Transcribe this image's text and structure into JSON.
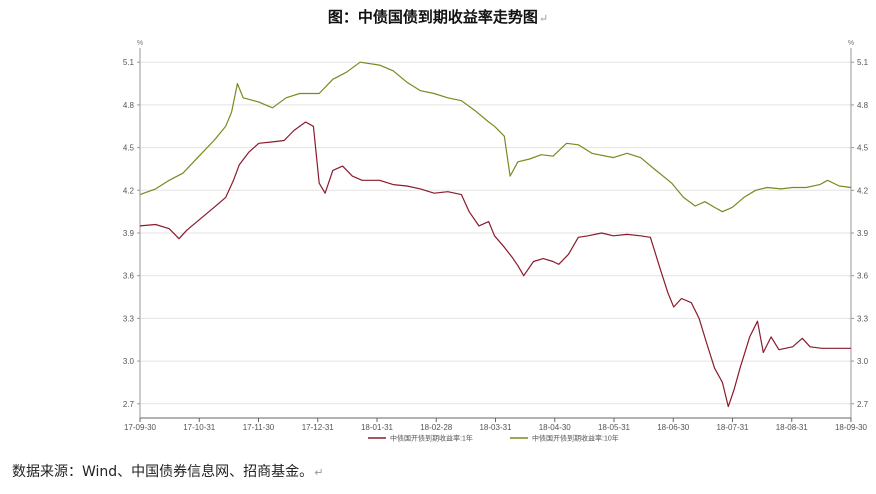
{
  "page": {
    "title": "图：中债国债到期收益率走势图",
    "return_mark": "↵",
    "source": "数据来源：Wind、中国债券信息网、招商基金。"
  },
  "chart_data": {
    "type": "line",
    "title": "图：中债国债到期收益率走势图",
    "unit_left": "%",
    "unit_right": "%",
    "ylim": [
      2.6,
      5.2
    ],
    "y_ticks": [
      "5.1",
      "4.8",
      "4.5",
      "4.2",
      "3.9",
      "3.6",
      "3.3",
      "3.0",
      "2.7"
    ],
    "y_tick_values": [
      5.1,
      4.8,
      4.5,
      4.2,
      3.9,
      3.6,
      3.3,
      3.0,
      2.7
    ],
    "x_ticks": [
      "17-09-30",
      "17-10-31",
      "17-11-30",
      "17-12-31",
      "18-01-31",
      "18-02-28",
      "18-03-31",
      "18-04-30",
      "18-05-31",
      "18-06-30",
      "18-07-31",
      "18-08-31",
      "18-09-30"
    ],
    "xlim": [
      "2017-09-30",
      "2018-09-30"
    ],
    "grid": "horizontal",
    "legend_position": "bottom",
    "series": [
      {
        "name": "中债国开债到期收益率:1年",
        "color": "#8b1a2b",
        "points": [
          [
            "2017-09-30",
            3.95
          ],
          [
            "2017-10-08",
            3.96
          ],
          [
            "2017-10-15",
            3.93
          ],
          [
            "2017-10-20",
            3.86
          ],
          [
            "2017-10-24",
            3.92
          ],
          [
            "2017-10-31",
            4.0
          ],
          [
            "2017-11-07",
            4.08
          ],
          [
            "2017-11-13",
            4.15
          ],
          [
            "2017-11-17",
            4.27
          ],
          [
            "2017-11-20",
            4.38
          ],
          [
            "2017-11-25",
            4.47
          ],
          [
            "2017-11-30",
            4.53
          ],
          [
            "2017-12-07",
            4.54
          ],
          [
            "2017-12-13",
            4.55
          ],
          [
            "2017-12-18",
            4.62
          ],
          [
            "2017-12-24",
            4.68
          ],
          [
            "2017-12-28",
            4.65
          ],
          [
            "2017-12-31",
            4.25
          ],
          [
            "2018-01-03",
            4.18
          ],
          [
            "2018-01-07",
            4.34
          ],
          [
            "2018-01-12",
            4.37
          ],
          [
            "2018-01-17",
            4.3
          ],
          [
            "2018-01-22",
            4.27
          ],
          [
            "2018-01-31",
            4.27
          ],
          [
            "2018-02-07",
            4.24
          ],
          [
            "2018-02-14",
            4.23
          ],
          [
            "2018-02-21",
            4.21
          ],
          [
            "2018-02-28",
            4.18
          ],
          [
            "2018-03-07",
            4.19
          ],
          [
            "2018-03-14",
            4.17
          ],
          [
            "2018-03-18",
            4.05
          ],
          [
            "2018-03-23",
            3.95
          ],
          [
            "2018-03-28",
            3.98
          ],
          [
            "2018-03-31",
            3.88
          ],
          [
            "2018-04-05",
            3.8
          ],
          [
            "2018-04-09",
            3.73
          ],
          [
            "2018-04-12",
            3.67
          ],
          [
            "2018-04-15",
            3.6
          ],
          [
            "2018-04-20",
            3.7
          ],
          [
            "2018-04-25",
            3.72
          ],
          [
            "2018-04-30",
            3.7
          ],
          [
            "2018-05-03",
            3.68
          ],
          [
            "2018-05-08",
            3.75
          ],
          [
            "2018-05-13",
            3.87
          ],
          [
            "2018-05-18",
            3.88
          ],
          [
            "2018-05-25",
            3.9
          ],
          [
            "2018-05-31",
            3.88
          ],
          [
            "2018-06-07",
            3.89
          ],
          [
            "2018-06-14",
            3.88
          ],
          [
            "2018-06-19",
            3.87
          ],
          [
            "2018-06-24",
            3.65
          ],
          [
            "2018-06-28",
            3.48
          ],
          [
            "2018-07-01",
            3.38
          ],
          [
            "2018-07-05",
            3.44
          ],
          [
            "2018-07-10",
            3.41
          ],
          [
            "2018-07-14",
            3.3
          ],
          [
            "2018-07-18",
            3.12
          ],
          [
            "2018-07-22",
            2.95
          ],
          [
            "2018-07-26",
            2.85
          ],
          [
            "2018-07-29",
            2.68
          ],
          [
            "2018-08-01",
            2.8
          ],
          [
            "2018-08-04",
            2.95
          ],
          [
            "2018-08-09",
            3.17
          ],
          [
            "2018-08-13",
            3.28
          ],
          [
            "2018-08-16",
            3.06
          ],
          [
            "2018-08-20",
            3.17
          ],
          [
            "2018-08-24",
            3.08
          ],
          [
            "2018-08-31",
            3.1
          ],
          [
            "2018-09-05",
            3.16
          ],
          [
            "2018-09-09",
            3.1
          ],
          [
            "2018-09-15",
            3.09
          ],
          [
            "2018-09-30",
            3.09
          ]
        ]
      },
      {
        "name": "中债国开债到期收益率:10年",
        "color": "#7a8a1e",
        "points": [
          [
            "2017-09-30",
            4.17
          ],
          [
            "2017-10-08",
            4.21
          ],
          [
            "2017-10-15",
            4.27
          ],
          [
            "2017-10-22",
            4.32
          ],
          [
            "2017-10-31",
            4.45
          ],
          [
            "2017-11-07",
            4.55
          ],
          [
            "2017-11-13",
            4.65
          ],
          [
            "2017-11-16",
            4.75
          ],
          [
            "2017-11-19",
            4.95
          ],
          [
            "2017-11-22",
            4.85
          ],
          [
            "2017-11-30",
            4.82
          ],
          [
            "2017-12-07",
            4.78
          ],
          [
            "2017-12-14",
            4.85
          ],
          [
            "2017-12-21",
            4.88
          ],
          [
            "2017-12-31",
            4.88
          ],
          [
            "2018-01-07",
            4.98
          ],
          [
            "2018-01-14",
            5.03
          ],
          [
            "2018-01-21",
            5.1
          ],
          [
            "2018-01-31",
            5.08
          ],
          [
            "2018-02-07",
            5.04
          ],
          [
            "2018-02-14",
            4.96
          ],
          [
            "2018-02-21",
            4.9
          ],
          [
            "2018-02-28",
            4.88
          ],
          [
            "2018-03-07",
            4.85
          ],
          [
            "2018-03-14",
            4.83
          ],
          [
            "2018-03-21",
            4.76
          ],
          [
            "2018-03-28",
            4.68
          ],
          [
            "2018-03-31",
            4.65
          ],
          [
            "2018-04-05",
            4.58
          ],
          [
            "2018-04-08",
            4.3
          ],
          [
            "2018-04-12",
            4.4
          ],
          [
            "2018-04-18",
            4.42
          ],
          [
            "2018-04-24",
            4.45
          ],
          [
            "2018-04-30",
            4.44
          ],
          [
            "2018-05-07",
            4.53
          ],
          [
            "2018-05-13",
            4.52
          ],
          [
            "2018-05-20",
            4.46
          ],
          [
            "2018-05-31",
            4.43
          ],
          [
            "2018-06-07",
            4.46
          ],
          [
            "2018-06-14",
            4.43
          ],
          [
            "2018-06-21",
            4.35
          ],
          [
            "2018-06-30",
            4.25
          ],
          [
            "2018-07-06",
            4.15
          ],
          [
            "2018-07-12",
            4.09
          ],
          [
            "2018-07-17",
            4.12
          ],
          [
            "2018-07-22",
            4.08
          ],
          [
            "2018-07-26",
            4.05
          ],
          [
            "2018-07-31",
            4.08
          ],
          [
            "2018-08-06",
            4.15
          ],
          [
            "2018-08-12",
            4.2
          ],
          [
            "2018-08-18",
            4.22
          ],
          [
            "2018-08-25",
            4.21
          ],
          [
            "2018-08-31",
            4.22
          ],
          [
            "2018-09-07",
            4.22
          ],
          [
            "2018-09-14",
            4.24
          ],
          [
            "2018-09-18",
            4.27
          ],
          [
            "2018-09-24",
            4.23
          ],
          [
            "2018-09-30",
            4.22
          ]
        ]
      }
    ]
  }
}
